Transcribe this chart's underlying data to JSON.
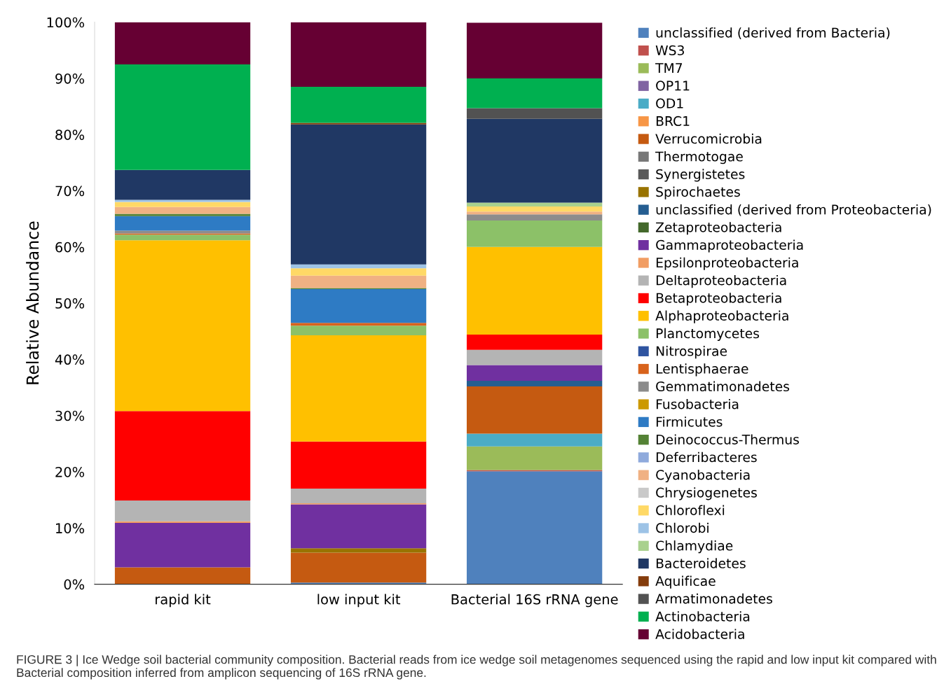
{
  "chart_data": {
    "type": "bar",
    "stacked": true,
    "ylabel": "Relative Abundance",
    "categories": [
      "rapid kit",
      "low input kit",
      "Bacterial 16S rRNA gene"
    ],
    "ylim": [
      0,
      100
    ],
    "yticks": [
      {
        "value": 0,
        "label": "0%"
      },
      {
        "value": 10,
        "label": "10%"
      },
      {
        "value": 20,
        "label": "20%"
      },
      {
        "value": 30,
        "label": "30%"
      },
      {
        "value": 40,
        "label": "40%"
      },
      {
        "value": 50,
        "label": "50%"
      },
      {
        "value": 60,
        "label": "60%"
      },
      {
        "value": 70,
        "label": "70%"
      },
      {
        "value": 80,
        "label": "80%"
      },
      {
        "value": 90,
        "label": "90%"
      },
      {
        "value": 100,
        "label": "100%"
      }
    ],
    "grid": false,
    "legend": "right",
    "annotations": [
      "FIGURE 3 | Ice Wedge soil bacterial community composition. Bacterial reads from ice wedge soil metagenomes sequenced using the rapid and low input kit compared with Bacterial composition inferred from amplicon sequencing of 16S rRNA gene."
    ],
    "series": [
      {
        "name": "unclassified (derived from Bacteria)",
        "color": "#4f81bd",
        "values": [
          0,
          0.3,
          20.1
        ]
      },
      {
        "name": "WS3",
        "color": "#c0504d",
        "values": [
          0,
          0,
          0.2
        ]
      },
      {
        "name": "TM7",
        "color": "#9bbb59",
        "values": [
          0,
          0,
          4.2
        ]
      },
      {
        "name": "OP11",
        "color": "#8064a2",
        "values": [
          0,
          0,
          0
        ]
      },
      {
        "name": "OD1",
        "color": "#4bacc6",
        "values": [
          0,
          0,
          2.3
        ]
      },
      {
        "name": "BRC1",
        "color": "#f79646",
        "values": [
          0,
          0,
          0
        ]
      },
      {
        "name": "Verrucomicrobia",
        "color": "#c55a11",
        "values": [
          3.0,
          5.3,
          8.4
        ]
      },
      {
        "name": "Thermotogae",
        "color": "#787878",
        "values": [
          0,
          0,
          0
        ]
      },
      {
        "name": "Synergistetes",
        "color": "#595959",
        "values": [
          0,
          0,
          0
        ]
      },
      {
        "name": "Spirochaetes",
        "color": "#997300",
        "values": [
          0,
          0.8,
          0
        ]
      },
      {
        "name": "unclassified (derived from Proteobacteria)",
        "color": "#255e91",
        "values": [
          0,
          0,
          1.0
        ]
      },
      {
        "name": "Zetaproteobacteria",
        "color": "#43682b",
        "values": [
          0,
          0,
          0
        ]
      },
      {
        "name": "Gammaproteobacteria",
        "color": "#7030a0",
        "values": [
          7.9,
          7.8,
          2.8
        ]
      },
      {
        "name": "Epsilonproteobacteria",
        "color": "#f19d63",
        "values": [
          0.3,
          0.2,
          0
        ]
      },
      {
        "name": "Deltaproteobacteria",
        "color": "#b4b4b4",
        "values": [
          3.7,
          2.6,
          2.7
        ]
      },
      {
        "name": "Betaproteobacteria",
        "color": "#ff0000",
        "values": [
          15.9,
          8.4,
          2.7
        ]
      },
      {
        "name": "Alphaproteobacteria",
        "color": "#ffc000",
        "values": [
          30.4,
          18.9,
          15.6
        ]
      },
      {
        "name": "Planctomycetes",
        "color": "#8cc168",
        "values": [
          1.0,
          1.7,
          4.7
        ]
      },
      {
        "name": "Nitrospirae",
        "color": "#2f54a0",
        "values": [
          0,
          0,
          0
        ]
      },
      {
        "name": "Lentisphaerae",
        "color": "#d8631c",
        "values": [
          0.2,
          0.5,
          0
        ]
      },
      {
        "name": "Gemmatimonadetes",
        "color": "#8c8c8c",
        "values": [
          0.5,
          0,
          1.1
        ]
      },
      {
        "name": "Fusobacteria",
        "color": "#cc9900",
        "values": [
          0,
          0,
          0
        ]
      },
      {
        "name": "Firmicutes",
        "color": "#2e7bc4",
        "values": [
          2.6,
          6.0,
          0
        ]
      },
      {
        "name": "Deinococcus-Thermus",
        "color": "#548235",
        "values": [
          0.4,
          0.2,
          0
        ]
      },
      {
        "name": "Deferribacteres",
        "color": "#8faadc",
        "values": [
          0,
          0,
          0
        ]
      },
      {
        "name": "Cyanobacteria",
        "color": "#f0b183",
        "values": [
          1.2,
          2.2,
          0.5
        ]
      },
      {
        "name": "Chrysiogenetes",
        "color": "#c9c9c9",
        "values": [
          0,
          0,
          0
        ]
      },
      {
        "name": "Chloroflexi",
        "color": "#ffd966",
        "values": [
          0.9,
          1.3,
          0.9
        ]
      },
      {
        "name": "Chlorobi",
        "color": "#9dc3e6",
        "values": [
          0.4,
          0.7,
          0
        ]
      },
      {
        "name": "Chlamydiae",
        "color": "#a9d18e",
        "values": [
          0,
          0,
          0.7
        ]
      },
      {
        "name": "Bacteroidetes",
        "color": "#203864",
        "values": [
          5.3,
          24.9,
          14.9
        ]
      },
      {
        "name": "Aquificae",
        "color": "#843c0c",
        "values": [
          0,
          0.3,
          0
        ]
      },
      {
        "name": "Armatimonadetes",
        "color": "#525252",
        "values": [
          0,
          0,
          1.9
        ]
      },
      {
        "name": "Actinobacteria",
        "color": "#00b050",
        "values": [
          18.8,
          6.4,
          5.3
        ]
      },
      {
        "name": "Acidobacteria",
        "color": "#660033",
        "values": [
          7.5,
          11.5,
          9.9
        ]
      }
    ]
  }
}
